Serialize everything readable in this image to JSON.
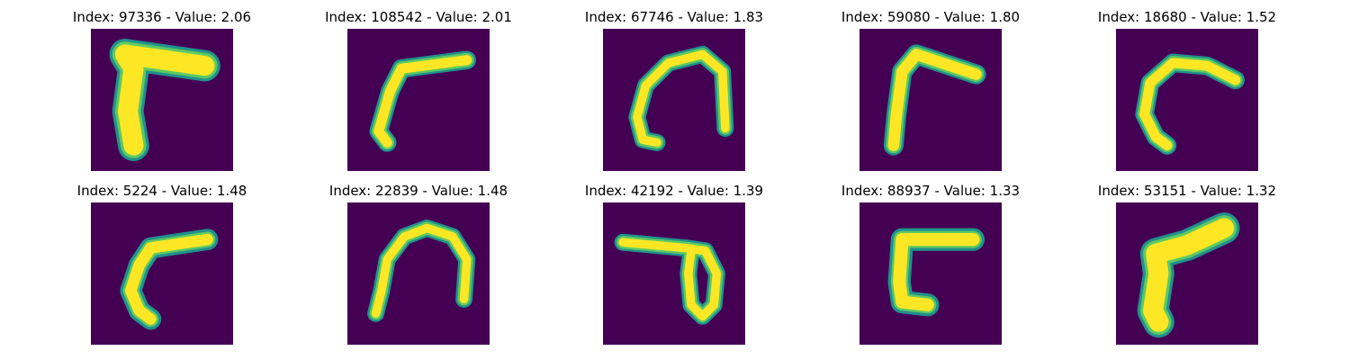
{
  "colors": {
    "background": "#440154",
    "stroke_inner": "#fde725",
    "stroke_edge": "#21918c",
    "stroke_mid": "#5ec962"
  },
  "panels": [
    {
      "index": "97336",
      "value": "2.06",
      "title": "Index: 97336 - Value: 2.06",
      "depicts": "thick stroke L-shape pointing right at top"
    },
    {
      "index": "108542",
      "value": "2.01",
      "title": "Index: 108542 - Value: 2.01",
      "depicts": "thin L-shape with long top bar"
    },
    {
      "index": "67746",
      "value": "1.83",
      "title": "Index: 67746 - Value: 1.83",
      "depicts": "arch shape with curl at bottom-left"
    },
    {
      "index": "59080",
      "value": "1.80",
      "title": "Index: 59080 - Value: 1.80",
      "depicts": "L-shape with slanted top bar"
    },
    {
      "index": "18680",
      "value": "1.52",
      "title": "Index: 18680 - Value: 1.52",
      "depicts": "curved hook shape"
    },
    {
      "index": "5224",
      "value": "1.48",
      "title": "Index: 5224 - Value: 1.48",
      "depicts": "hook L-shape bending left"
    },
    {
      "index": "22839",
      "value": "1.48",
      "title": "Index: 22839 - Value: 1.48",
      "depicts": "arch shape"
    },
    {
      "index": "42192",
      "value": "1.39",
      "title": "Index: 42192 - Value: 1.39",
      "depicts": "horizontal bar with loop"
    },
    {
      "index": "88937",
      "value": "1.33",
      "title": "Index: 88937 - Value: 1.33",
      "depicts": "square bracket shape"
    },
    {
      "index": "53151",
      "value": "1.32",
      "title": "Index: 53151 - Value: 1.32",
      "depicts": "thick slanted T-like shape"
    }
  ]
}
